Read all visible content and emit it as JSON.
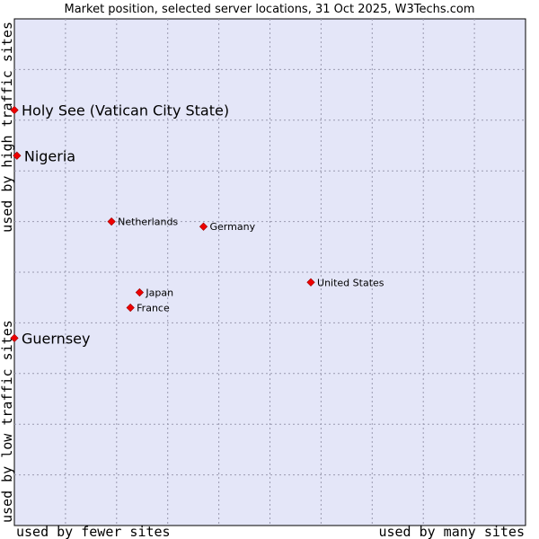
{
  "chart_data": {
    "type": "scatter",
    "title": "Market position, selected server locations, 31 Oct 2025, W3Techs.com",
    "xlabel_left": "used by fewer sites",
    "xlabel_right": "used by many sites",
    "ylabel_bottom": "used by low traffic sites",
    "ylabel_top": "used by high traffic sites",
    "xlim": [
      0,
      100
    ],
    "ylim": [
      0,
      100
    ],
    "grid": true,
    "marker_color": "#ee0000",
    "plot_background": "#e4e6f8",
    "points": [
      {
        "name": "Holy See (Vatican City State)",
        "x": 0,
        "y": 82,
        "emphasis": true
      },
      {
        "name": "Nigeria",
        "x": 0.5,
        "y": 73,
        "emphasis": true
      },
      {
        "name": "Netherlands",
        "x": 19,
        "y": 60,
        "emphasis": false
      },
      {
        "name": "Germany",
        "x": 37,
        "y": 59,
        "emphasis": false
      },
      {
        "name": "United States",
        "x": 58,
        "y": 48,
        "emphasis": false
      },
      {
        "name": "Japan",
        "x": 24.5,
        "y": 46,
        "emphasis": false
      },
      {
        "name": "France",
        "x": 22.7,
        "y": 43,
        "emphasis": false
      },
      {
        "name": "Guernsey",
        "x": 0,
        "y": 37,
        "emphasis": true
      }
    ]
  }
}
